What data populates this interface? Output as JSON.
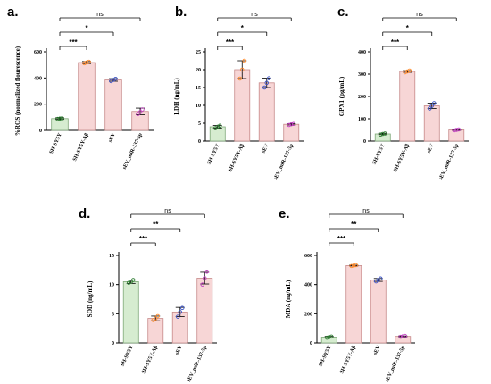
{
  "style": {
    "bar_fill": "#f7d6d6",
    "bar_stroke": "#c78a8a",
    "first_bar_fill": "#d6ecd0",
    "first_bar_stroke": "#7fa878",
    "dot_colors": [
      "#2e7d32",
      "#ff8c2e",
      "#3b52c4",
      "#c040c0"
    ]
  },
  "chart_data": [
    {
      "panel": "a.",
      "type": "bar",
      "ylabel": "%ROS (normalized flourescence)",
      "categories": [
        "SH-SY5Y",
        "SH-SY5Y-Aβ",
        "sEV",
        "sEV_miR-137-5p"
      ],
      "values": [
        90,
        518,
        385,
        145
      ],
      "errors": [
        6,
        8,
        10,
        25
      ],
      "points": [
        [
          88,
          90,
          92
        ],
        [
          512,
          518,
          524
        ],
        [
          376,
          385,
          394
        ],
        [
          125,
          140,
          160
        ]
      ],
      "ylim": [
        0,
        600
      ],
      "yticks": [
        0,
        200,
        400,
        600
      ],
      "brackets": [
        {
          "label": "***",
          "to": 1
        },
        {
          "label": "*",
          "to": 2
        },
        {
          "label": "ns",
          "to": 3
        }
      ]
    },
    {
      "panel": "b.",
      "type": "bar",
      "ylabel": "LDH (ng/mL)",
      "categories": [
        "SH-SY5Y",
        "SH-SY5Y-Aβ",
        "sEV",
        "sEV_miR-137-5p"
      ],
      "values": [
        4.0,
        20.0,
        16.3,
        4.7
      ],
      "errors": [
        0.4,
        2.5,
        1.3,
        0.2
      ],
      "points": [
        [
          3.6,
          4.0,
          4.3
        ],
        [
          17.5,
          20.0,
          22.5
        ],
        [
          15.0,
          16.3,
          17.6
        ],
        [
          4.5,
          4.7,
          4.8
        ]
      ],
      "ylim": [
        0,
        25
      ],
      "yticks": [
        0,
        5,
        10,
        15,
        20,
        25
      ],
      "brackets": [
        {
          "label": "***",
          "to": 1
        },
        {
          "label": "*",
          "to": 2
        },
        {
          "label": "ns",
          "to": 3
        }
      ]
    },
    {
      "panel": "c.",
      "type": "bar",
      "ylabel": "GPX1 (pg/mL)",
      "categories": [
        "SH-SY5Y",
        "SH-SY5Y-Aβ",
        "sEV",
        "sEV_miR-137-5p"
      ],
      "values": [
        32,
        312,
        158,
        50
      ],
      "errors": [
        3,
        4,
        12,
        2
      ],
      "points": [
        [
          29,
          32,
          34
        ],
        [
          308,
          312,
          316
        ],
        [
          146,
          158,
          170
        ],
        [
          48,
          50,
          52
        ]
      ],
      "ylim": [
        0,
        400
      ],
      "yticks": [
        0,
        100,
        200,
        300,
        400
      ],
      "brackets": [
        {
          "label": "***",
          "to": 1
        },
        {
          "label": "*",
          "to": 2
        },
        {
          "label": "ns",
          "to": 3
        }
      ]
    },
    {
      "panel": "d.",
      "type": "bar",
      "ylabel": "SOD (ng/mL)",
      "categories": [
        "SH-SY5Y",
        "SH-SY5Y-Aβ",
        "sEV",
        "sEV_miR-137-5p"
      ],
      "values": [
        10.5,
        4.2,
        5.3,
        11.1
      ],
      "errors": [
        0.3,
        0.4,
        0.8,
        1.0
      ],
      "points": [
        [
          10.3,
          10.5,
          10.8
        ],
        [
          3.9,
          4.2,
          4.6
        ],
        [
          4.5,
          5.3,
          6.0
        ],
        [
          10.0,
          11.1,
          12.2
        ]
      ],
      "ylim": [
        0,
        15
      ],
      "yticks": [
        0,
        5,
        10,
        15
      ],
      "brackets": [
        {
          "label": "***",
          "to": 1
        },
        {
          "label": "**",
          "to": 2
        },
        {
          "label": "ns",
          "to": 3
        }
      ]
    },
    {
      "panel": "e.",
      "type": "bar",
      "ylabel": "MDA (ng/mL)",
      "categories": [
        "SH-SY5Y",
        "SH-SY5Y-Aβ",
        "sEV",
        "sEV_miR-137-5p"
      ],
      "values": [
        40,
        530,
        432,
        45
      ],
      "errors": [
        5,
        3,
        10,
        3
      ],
      "points": [
        [
          36,
          40,
          44
        ],
        [
          527,
          530,
          533
        ],
        [
          422,
          432,
          442
        ],
        [
          42,
          45,
          48
        ]
      ],
      "ylim": [
        0,
        600
      ],
      "yticks": [
        0,
        200,
        400,
        600
      ],
      "brackets": [
        {
          "label": "***",
          "to": 1
        },
        {
          "label": "**",
          "to": 2
        },
        {
          "label": "ns",
          "to": 3
        }
      ]
    }
  ]
}
